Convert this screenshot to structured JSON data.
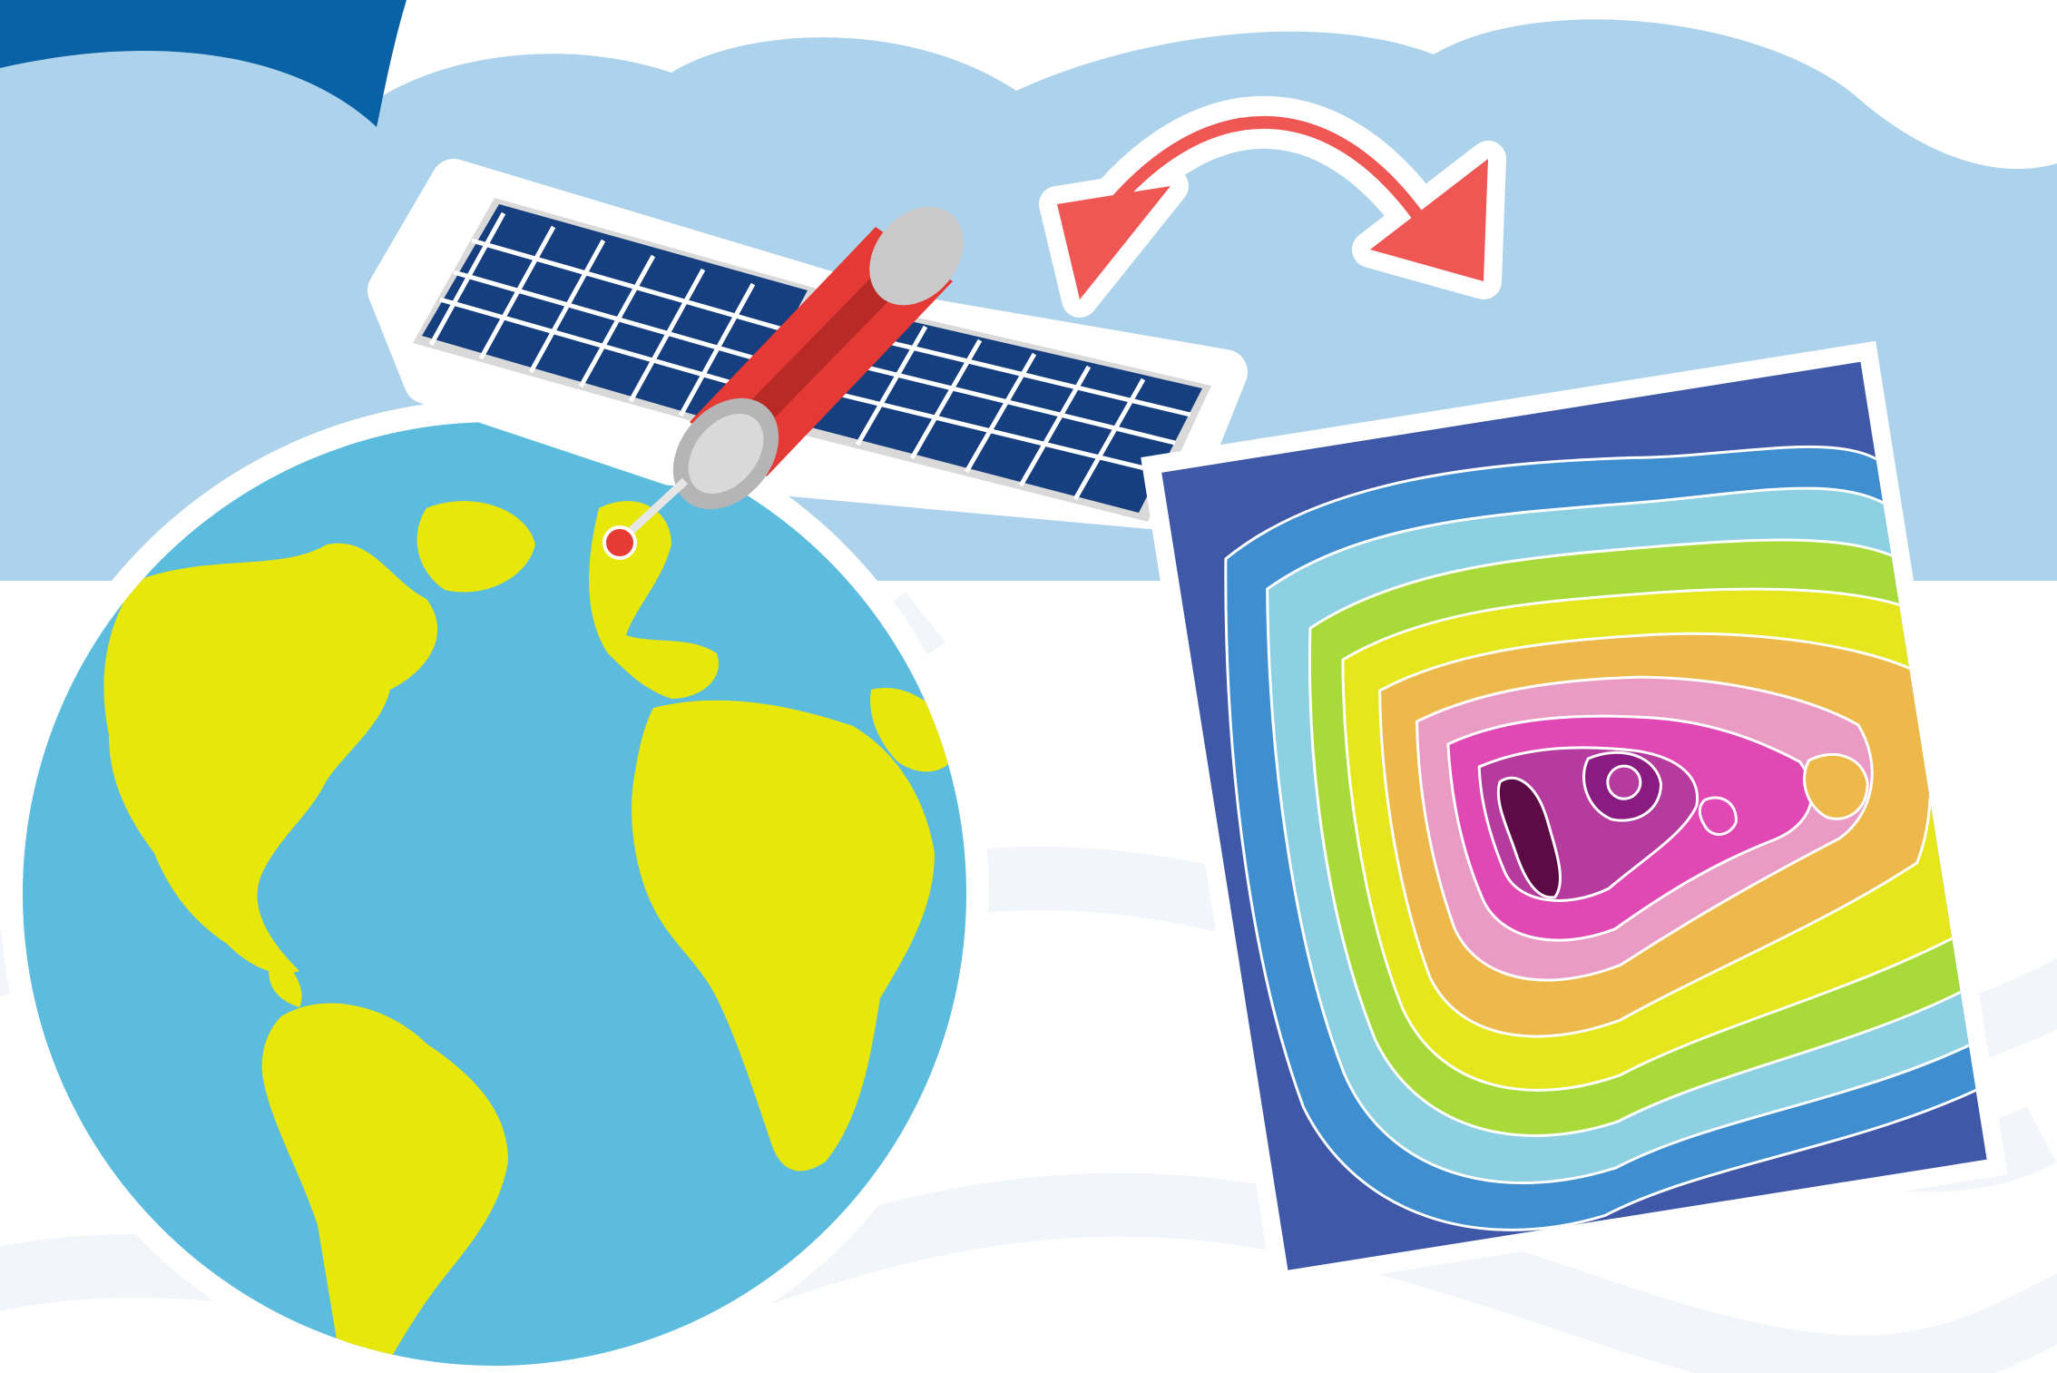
{
  "illustration": {
    "subjects": [
      "globe-icon",
      "satellite-icon",
      "contour-map-icon",
      "double-arrow-icon"
    ],
    "colors": {
      "background": "#ffffff",
      "cloud_band": "#acd3eb",
      "faint_pattern": "#f2f6fa",
      "corner_accent": "#0a62a6",
      "ocean": "#5cbcdd",
      "land": "#e8e70a",
      "outline": "#ffffff",
      "solar_panel": "#163f7f",
      "satellite_body": "#e53936",
      "satellite_cap": "#c9c9c9",
      "pin": "#e63a35",
      "arrow": "#ef5755",
      "contour_palette": [
        "#3f58a8",
        "#3f8fd0",
        "#8dd0e2",
        "#a8da3a",
        "#e5e61d",
        "#ecb94a",
        "#ea9bc4",
        "#e048b4",
        "#b63b9f",
        "#8a1b80",
        "#5d0b47"
      ]
    }
  }
}
